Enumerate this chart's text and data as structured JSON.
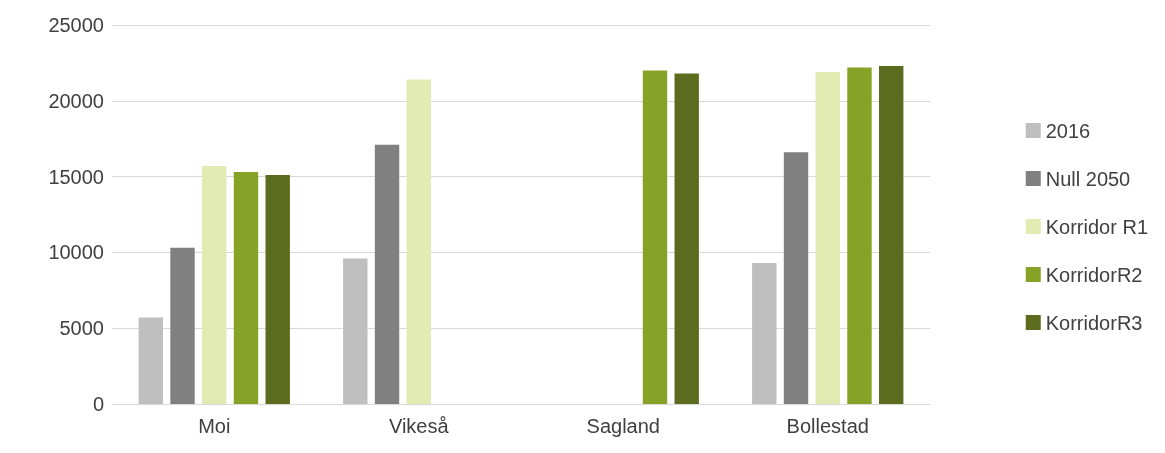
{
  "chart_data": {
    "type": "bar",
    "categories": [
      "Moi",
      "Vikeså",
      "Sagland",
      "Bollestad"
    ],
    "series": [
      {
        "name": "2016",
        "color": "#bfbfbf",
        "values": [
          5700,
          9600,
          null,
          9300
        ]
      },
      {
        "name": "Null 2050",
        "color": "#808080",
        "values": [
          10300,
          17100,
          null,
          16600
        ]
      },
      {
        "name": "Korridor R1",
        "color": "#e2ebb1",
        "values": [
          15700,
          21400,
          null,
          21900
        ]
      },
      {
        "name": "KorridorR2",
        "color": "#87a327",
        "values": [
          15300,
          null,
          22000,
          22200
        ]
      },
      {
        "name": "KorridorR3",
        "color": "#5c6c1e",
        "values": [
          15100,
          null,
          21800,
          22300
        ]
      }
    ],
    "ylim": [
      0,
      25000
    ],
    "yticks": [
      0,
      5000,
      10000,
      15000,
      20000,
      25000
    ],
    "grid": "y",
    "legend": "right"
  }
}
